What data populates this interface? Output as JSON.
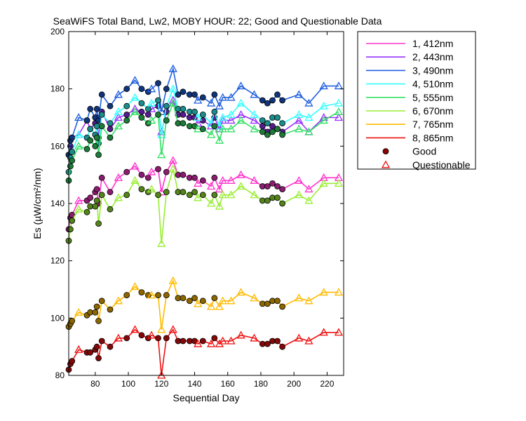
{
  "chart_data": {
    "type": "line",
    "title": "SeaWiFS Total Band,  Lw2, MOBY HOUR: 22;  Good and Questionable Data",
    "xlabel": "Sequential Day",
    "ylabel": "Es (µW/cm²/nm)",
    "xlim": [
      64,
      230
    ],
    "ylim": [
      80,
      200
    ],
    "xticks": [
      80,
      100,
      120,
      140,
      160,
      180,
      200,
      220
    ],
    "yticks": [
      80,
      100,
      120,
      140,
      160,
      180,
      200
    ],
    "x": [
      64,
      65,
      66,
      70,
      75,
      77,
      80,
      81,
      82,
      84,
      89,
      94,
      99,
      104,
      108,
      112,
      114,
      118,
      120,
      123,
      127,
      130,
      133,
      137,
      140,
      142,
      145,
      150,
      152,
      155,
      157,
      162,
      168,
      176,
      181,
      184,
      187,
      190,
      193,
      203,
      209,
      218,
      227
    ],
    "quality": [
      "G",
      "G",
      "G",
      "Q",
      "G",
      "G",
      "G",
      "G",
      "G",
      "G",
      "G",
      "Q",
      "G",
      "Q",
      "G",
      "G",
      "Q",
      "G",
      "Q",
      "G",
      "Q",
      "G",
      "G",
      "G",
      "G",
      "Q",
      "G",
      "Q",
      "G",
      "Q",
      "Q",
      "Q",
      "Q",
      "Q",
      "G",
      "G",
      "G",
      "G",
      "G",
      "Q",
      "Q",
      "Q",
      "Q"
    ],
    "series": [
      {
        "name": "1, 412nm",
        "color": "#ff33cc",
        "values": [
          131,
          135,
          136,
          141,
          141,
          142,
          144,
          145,
          140,
          149,
          144,
          149,
          151,
          153,
          150,
          149,
          151,
          152,
          144,
          151,
          155,
          150,
          150,
          149,
          149,
          147,
          148,
          146,
          149,
          145,
          148,
          148,
          150,
          148,
          146,
          146,
          147,
          146,
          145,
          148,
          145,
          149,
          149
        ]
      },
      {
        "name": "2, 443nm",
        "color": "#9933ff",
        "values": [
          157,
          160,
          163,
          164,
          169,
          166,
          168,
          170,
          163,
          172,
          166,
          170,
          171,
          173,
          172,
          171,
          173,
          174,
          165,
          172,
          176,
          171,
          171,
          170,
          170,
          168,
          169,
          167,
          170,
          166,
          169,
          169,
          171,
          169,
          167,
          165,
          167,
          166,
          165,
          169,
          165,
          170,
          170
        ]
      },
      {
        "name": "3, 490nm",
        "color": "#1f5fe0",
        "values": [
          157,
          162,
          163,
          170,
          169,
          173,
          170,
          173,
          169,
          178,
          174,
          178,
          180,
          183,
          180,
          179,
          180,
          182,
          172,
          180,
          187,
          178,
          179,
          178,
          178,
          176,
          177,
          175,
          178,
          174,
          177,
          177,
          181,
          178,
          176,
          175,
          176,
          178,
          176,
          178,
          175,
          181,
          181
        ]
      },
      {
        "name": "4, 510nm",
        "color": "#33ffff",
        "values": [
          151,
          156,
          158,
          164,
          163,
          166,
          164,
          167,
          161,
          171,
          168,
          172,
          174,
          177,
          175,
          173,
          175,
          176,
          164,
          174,
          180,
          173,
          173,
          172,
          172,
          170,
          171,
          168,
          172,
          167,
          170,
          171,
          175,
          171,
          169,
          168,
          170,
          170,
          168,
          171,
          170,
          174,
          175
        ]
      },
      {
        "name": "5, 555nm",
        "color": "#33e066",
        "values": [
          148,
          153,
          155,
          160,
          159,
          162,
          160,
          163,
          157,
          167,
          163,
          167,
          169,
          172,
          170,
          168,
          169,
          171,
          157,
          169,
          175,
          168,
          168,
          167,
          167,
          166,
          166,
          164,
          167,
          162,
          166,
          166,
          169,
          166,
          165,
          164,
          165,
          166,
          164,
          166,
          165,
          169,
          172
        ]
      },
      {
        "name": "6, 670nm",
        "color": "#99ee33",
        "values": [
          127,
          131,
          134,
          138,
          137,
          139,
          139,
          141,
          133,
          143,
          138,
          142,
          143,
          148,
          145,
          144,
          145,
          143,
          126,
          144,
          152,
          144,
          144,
          143,
          144,
          142,
          143,
          140,
          143,
          139,
          143,
          143,
          146,
          143,
          141,
          141,
          142,
          142,
          140,
          143,
          141,
          147,
          147
        ]
      },
      {
        "name": "7, 765nm",
        "color": "#ffbb00",
        "values": [
          97,
          98,
          99,
          102,
          101,
          102,
          102,
          104,
          99,
          106,
          103,
          106,
          108,
          111,
          109,
          108,
          108,
          108,
          96,
          108,
          113,
          107,
          107,
          106,
          107,
          105,
          106,
          104,
          107,
          104,
          106,
          106,
          109,
          107,
          105,
          105,
          106,
          106,
          104,
          107,
          106,
          109,
          109
        ]
      },
      {
        "name": "8, 865nm",
        "color": "#ee1111",
        "values": [
          82,
          84,
          85,
          89,
          88,
          88,
          89,
          90,
          86,
          92,
          90,
          93,
          93,
          96,
          94,
          93,
          94,
          93,
          80,
          93,
          96,
          92,
          92,
          92,
          92,
          91,
          92,
          91,
          93,
          91,
          92,
          92,
          94,
          93,
          91,
          91,
          92,
          92,
          90,
          93,
          92,
          95,
          95
        ]
      }
    ],
    "legend": {
      "position": "top-right",
      "markers": [
        {
          "label": "Good"
        },
        {
          "label": "Questionable"
        }
      ]
    },
    "grid": false
  }
}
